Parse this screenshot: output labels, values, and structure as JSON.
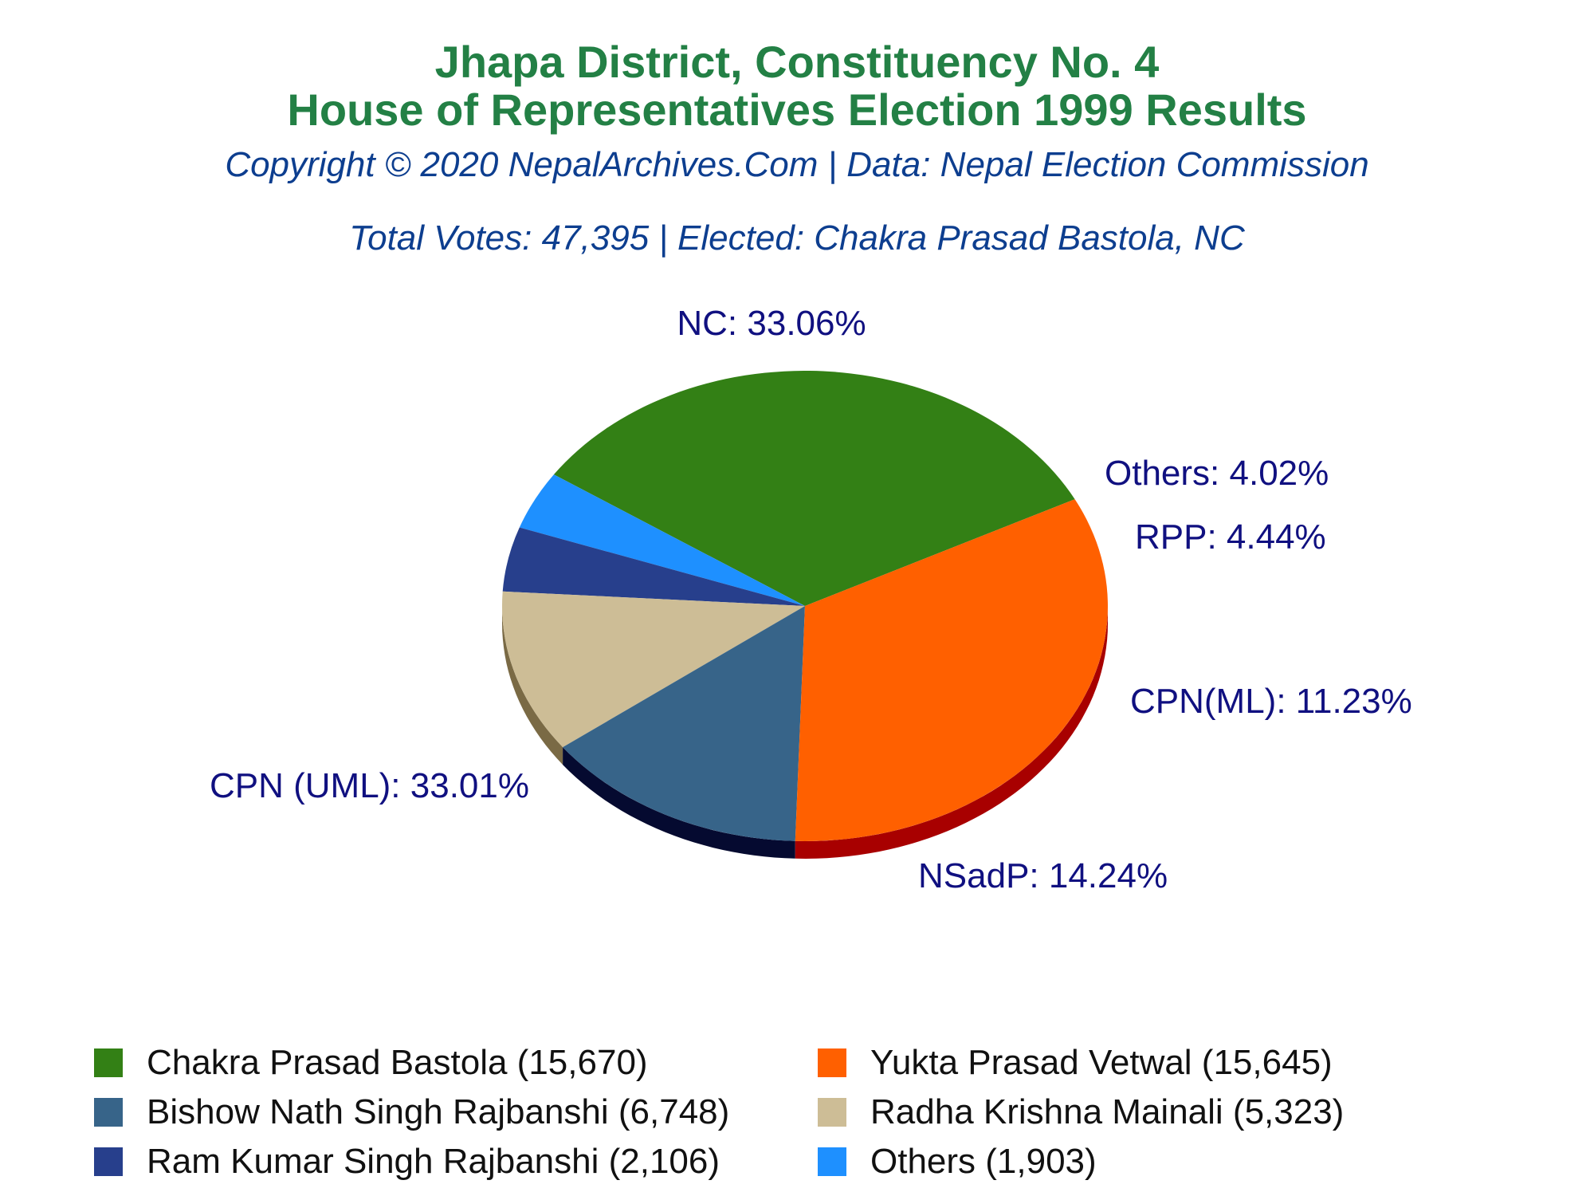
{
  "header": {
    "title_line1": "Jhapa District, Constituency No. 4",
    "title_line2": "House of Representatives Election 1999 Results",
    "copyright": "Copyright © 2020 NepalArchives.Com | Data: Nepal Election Commission",
    "summary": "Total Votes: 47,395 | Elected: Chakra Prasad Bastola, NC"
  },
  "chart_data": {
    "type": "pie",
    "title": "Jhapa District, Constituency No. 4 House of Representatives Election 1999 Results",
    "slices": [
      {
        "party": "NC",
        "label": "NC: 33.06%",
        "percent": 33.06,
        "color": "#338015",
        "side": "#1f5a0c"
      },
      {
        "party": "Others",
        "label": "Others: 4.02%",
        "percent": 4.02,
        "color": "#1e90ff",
        "side": "#1466bb"
      },
      {
        "party": "RPP",
        "label": "RPP: 4.44%",
        "percent": 4.44,
        "color": "#273f8c",
        "side": "#152455"
      },
      {
        "party": "CPN(ML)",
        "label": "CPN(ML): 11.23%",
        "percent": 11.23,
        "color": "#cdbd96",
        "side": "#7a6a45"
      },
      {
        "party": "NSadP",
        "label": "NSadP: 14.24%",
        "percent": 14.24,
        "color": "#376489",
        "side": "#050a30"
      },
      {
        "party": "CPN (UML)",
        "label": "CPN (UML): 33.01%",
        "percent": 33.01,
        "color": "#ff6000",
        "side": "#a80000"
      }
    ],
    "legend": [
      {
        "text": "Chakra Prasad Bastola (15,670)",
        "color": "#338015"
      },
      {
        "text": "Yukta Prasad Vetwal (15,645)",
        "color": "#ff6000"
      },
      {
        "text": "Bishow Nath Singh Rajbanshi (6,748)",
        "color": "#376489"
      },
      {
        "text": "Radha Krishna Mainali (5,323)",
        "color": "#cdbd96"
      },
      {
        "text": "Ram Kumar Singh Rajbanshi (2,106)",
        "color": "#273f8c"
      },
      {
        "text": "Others (1,903)",
        "color": "#1e90ff"
      }
    ]
  }
}
